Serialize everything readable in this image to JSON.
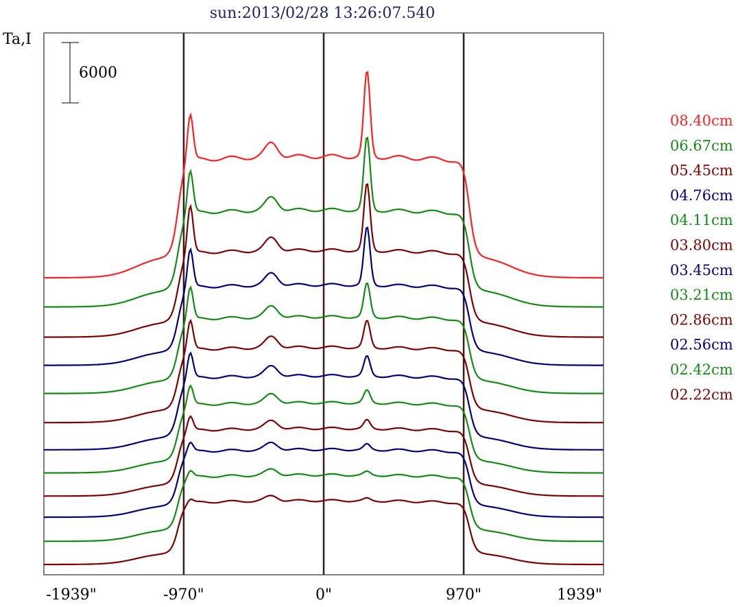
{
  "chart_data": {
    "type": "line",
    "title": "sun:2013/02/28 13:26:07.540",
    "ylabel": "Ta,I",
    "xlabel": "",
    "x_ticks": [
      "-1939\"",
      "-970\"",
      "0\"",
      "970\"",
      "1939\""
    ],
    "x_tick_values": [
      -1939,
      -970,
      0,
      970,
      1939
    ],
    "xlim": [
      -1939,
      1939
    ],
    "vertical_lines_at": [
      -970,
      0,
      970
    ],
    "scale_bar": {
      "label": "6000",
      "value": 6000
    },
    "series": [
      {
        "name": "08.40cm",
        "color": "#ff2020",
        "baseline": 25000,
        "limb_amp": 9500,
        "src_left_amp": 4700,
        "src_mid_amp": 1400,
        "src_right_amp": 8400
      },
      {
        "name": "06.67cm",
        "color": "#138a13",
        "baseline": 22100,
        "limb_amp": 7600,
        "src_left_amp": 4300,
        "src_mid_amp": 1300,
        "src_right_amp": 7200
      },
      {
        "name": "05.45cm",
        "color": "#7f0000",
        "baseline": 19100,
        "limb_amp": 6800,
        "src_left_amp": 4800,
        "src_mid_amp": 1300,
        "src_right_amp": 6600
      },
      {
        "name": "04.76cm",
        "color": "#00007f",
        "baseline": 16300,
        "limb_amp": 6300,
        "src_left_amp": 3900,
        "src_mid_amp": 1200,
        "src_right_amp": 5700
      },
      {
        "name": "04.11cm",
        "color": "#138a13",
        "baseline": 13500,
        "limb_amp": 6000,
        "src_left_amp": 3300,
        "src_mid_amp": 1100,
        "src_right_amp": 3300
      },
      {
        "name": "03.80cm",
        "color": "#7f0000",
        "baseline": 10600,
        "limb_amp": 5900,
        "src_left_amp": 3000,
        "src_mid_amp": 1100,
        "src_right_amp": 2600
      },
      {
        "name": "03.45cm",
        "color": "#00007f",
        "baseline": 7900,
        "limb_amp": 5800,
        "src_left_amp": 2600,
        "src_mid_amp": 1000,
        "src_right_amp": 1900
      },
      {
        "name": "03.21cm",
        "color": "#138a13",
        "baseline": 5600,
        "limb_amp": 5500,
        "src_left_amp": 2000,
        "src_mid_amp": 900,
        "src_right_amp": 1200
      },
      {
        "name": "02.86cm",
        "color": "#7f0000",
        "baseline": 3300,
        "limb_amp": 5300,
        "src_left_amp": 1500,
        "src_mid_amp": 800,
        "src_right_amp": 800
      },
      {
        "name": "02.56cm",
        "color": "#00007f",
        "baseline": 1200,
        "limb_amp": 5300,
        "src_left_amp": 1000,
        "src_mid_amp": 700,
        "src_right_amp": 500
      },
      {
        "name": "02.42cm",
        "color": "#138a13",
        "baseline": -1200,
        "limb_amp": 5200,
        "src_left_amp": 700,
        "src_mid_amp": 600,
        "src_right_amp": 300
      },
      {
        "name": "02.22cm",
        "color": "#7f0000",
        "baseline": -3500,
        "limb_amp": 5000,
        "src_left_amp": 400,
        "src_mid_amp": 500,
        "src_right_amp": 200
      }
    ]
  }
}
